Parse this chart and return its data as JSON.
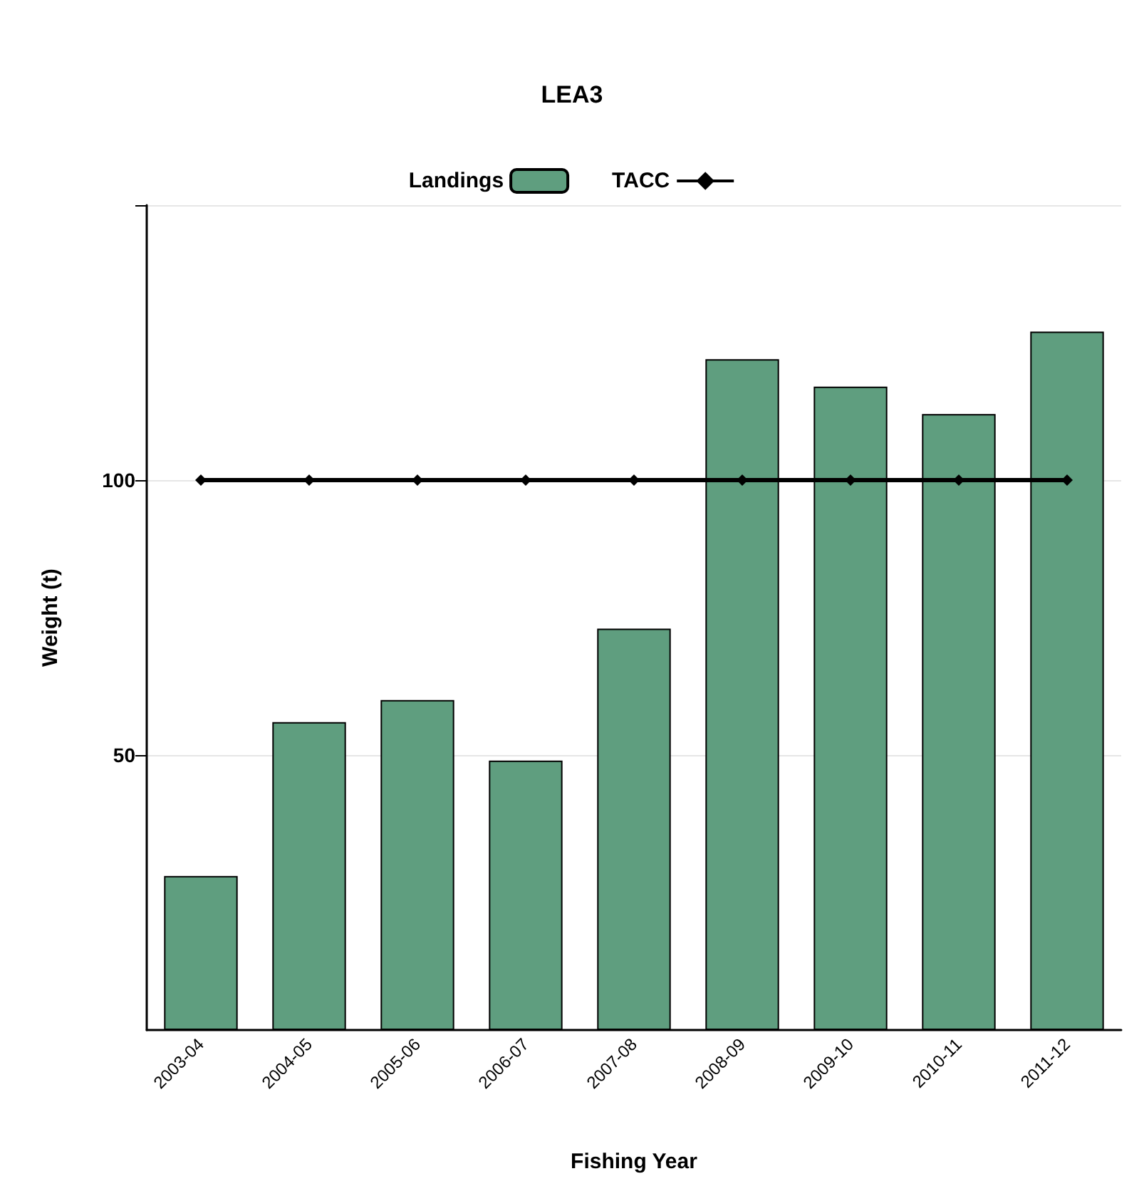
{
  "chart_data": {
    "type": "bar",
    "title": "LEA3",
    "xlabel": "Fishing Year",
    "ylabel": "Weight (t)",
    "categories": [
      "2003-04",
      "2004-05",
      "2005-06",
      "2006-07",
      "2007-08",
      "2008-09",
      "2009-10",
      "2010-11",
      "2011-12"
    ],
    "series": [
      {
        "name": "Landings",
        "color": "#5f9e7f",
        "values": [
          28,
          56,
          60,
          49,
          73,
          122,
          117,
          112,
          127
        ]
      },
      {
        "name": "TACC",
        "type": "line",
        "color": "#000000",
        "marker": "diamond",
        "line_style": "solid",
        "values": [
          100,
          100,
          100,
          100,
          100,
          100,
          100,
          100,
          100
        ]
      }
    ],
    "ylim": [
      0,
      150
    ],
    "yticks": [
      50,
      100,
      {
        "value": 150,
        "label": null
      }
    ],
    "grid": "y",
    "legend": "top"
  }
}
